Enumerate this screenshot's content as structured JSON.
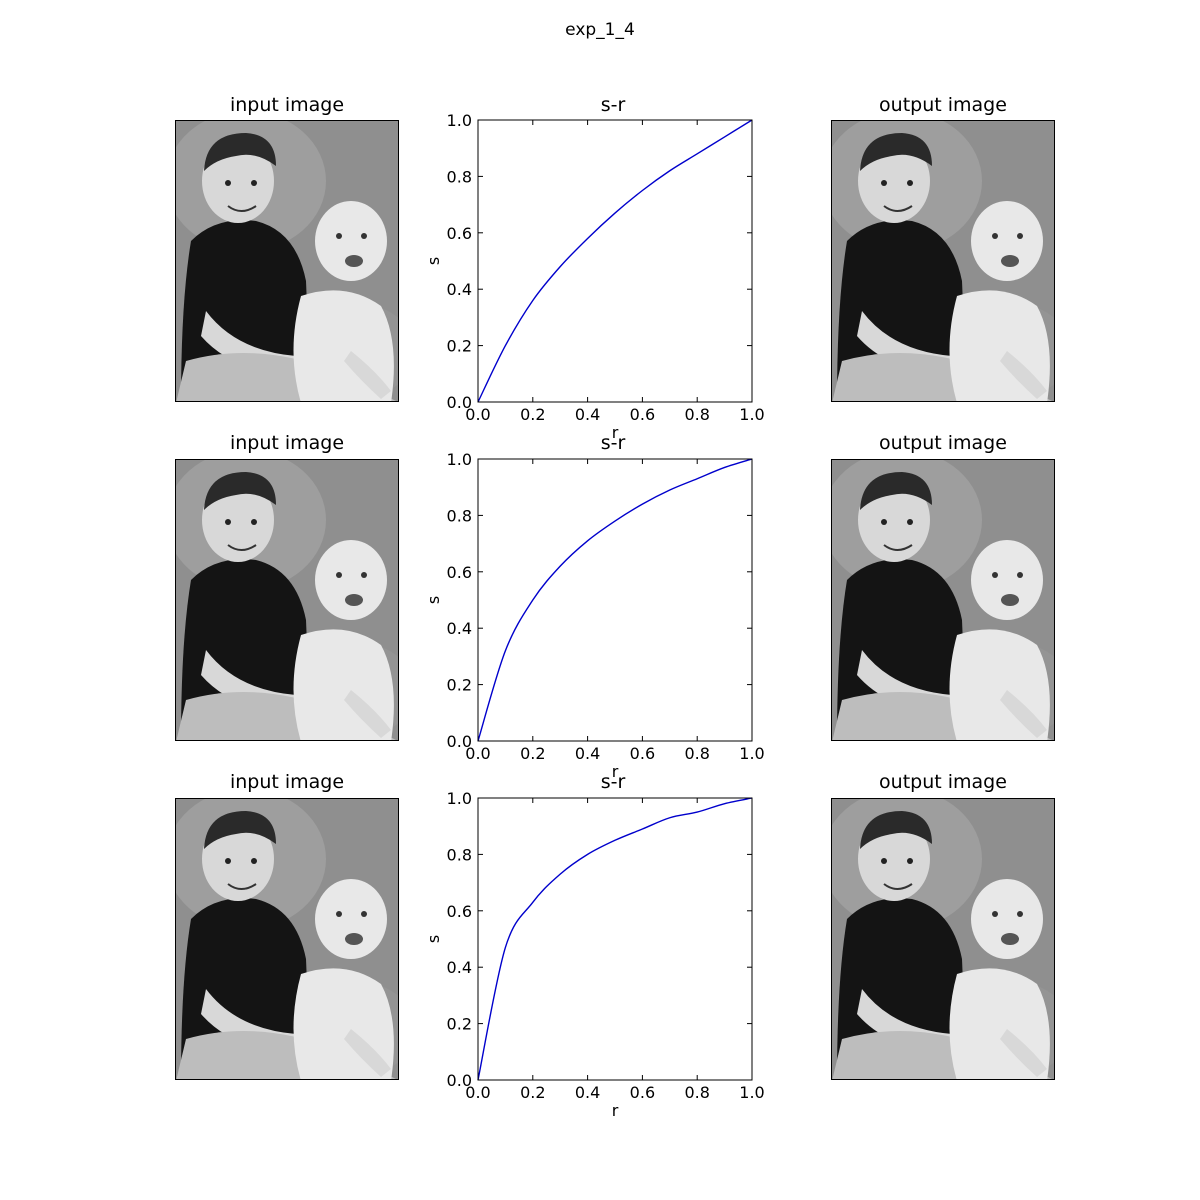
{
  "figure": {
    "suptitle": "exp_1_4"
  },
  "panels": [
    {
      "input_title": "input image",
      "plot_title": "s-r",
      "output_title": "output image"
    },
    {
      "input_title": "input image",
      "plot_title": "s-r",
      "output_title": "output image"
    },
    {
      "input_title": "input image",
      "plot_title": "s-r",
      "output_title": "output image"
    }
  ],
  "photo": {
    "description_icon": "two-children-photo-icon",
    "colors": {
      "background": "#8f8f8f",
      "shirt": "#141414",
      "skin": "#d8d8d8",
      "baby": "#e8e8e8",
      "hair": "#2a2a2a",
      "legs": "#bdbdbd"
    }
  },
  "chart_data": [
    {
      "type": "line",
      "title": "s-r",
      "xlabel": "r",
      "ylabel": "s",
      "xlim": [
        0.0,
        1.0
      ],
      "ylim": [
        0.0,
        1.0
      ],
      "xticks": [
        "0.0",
        "0.2",
        "0.4",
        "0.6",
        "0.8",
        "1.0"
      ],
      "yticks": [
        "0.0",
        "0.2",
        "0.4",
        "0.6",
        "0.8",
        "1.0"
      ],
      "series": [
        {
          "color": "#0000cc",
          "x": [
            0.0,
            0.1,
            0.2,
            0.3,
            0.4,
            0.5,
            0.6,
            0.7,
            0.8,
            0.9,
            1.0
          ],
          "y": [
            0.0,
            0.2,
            0.36,
            0.48,
            0.58,
            0.67,
            0.75,
            0.82,
            0.88,
            0.94,
            1.0
          ]
        }
      ],
      "grid": false
    },
    {
      "type": "line",
      "title": "s-r",
      "xlabel": "r",
      "ylabel": "s",
      "xlim": [
        0.0,
        1.0
      ],
      "ylim": [
        0.0,
        1.0
      ],
      "xticks": [
        "0.0",
        "0.2",
        "0.4",
        "0.6",
        "0.8",
        "1.0"
      ],
      "yticks": [
        "0.0",
        "0.2",
        "0.4",
        "0.6",
        "0.8",
        "1.0"
      ],
      "series": [
        {
          "color": "#0000cc",
          "x": [
            0.0,
            0.1,
            0.2,
            0.3,
            0.4,
            0.5,
            0.6,
            0.7,
            0.8,
            0.9,
            1.0
          ],
          "y": [
            0.0,
            0.32,
            0.5,
            0.62,
            0.71,
            0.78,
            0.84,
            0.89,
            0.93,
            0.97,
            1.0
          ]
        }
      ],
      "grid": false
    },
    {
      "type": "line",
      "title": "s-r",
      "xlabel": "r",
      "ylabel": "s",
      "xlim": [
        0.0,
        1.0
      ],
      "ylim": [
        0.0,
        1.0
      ],
      "xticks": [
        "0.0",
        "0.2",
        "0.4",
        "0.6",
        "0.8",
        "1.0"
      ],
      "yticks": [
        "0.0",
        "0.2",
        "0.4",
        "0.6",
        "0.8",
        "1.0"
      ],
      "series": [
        {
          "color": "#0000cc",
          "x": [
            0.0,
            0.1,
            0.2,
            0.3,
            0.4,
            0.5,
            0.6,
            0.7,
            0.8,
            0.9,
            1.0
          ],
          "y": [
            0.0,
            0.47,
            0.63,
            0.73,
            0.8,
            0.85,
            0.89,
            0.93,
            0.95,
            0.98,
            1.0
          ]
        }
      ],
      "grid": false
    }
  ]
}
